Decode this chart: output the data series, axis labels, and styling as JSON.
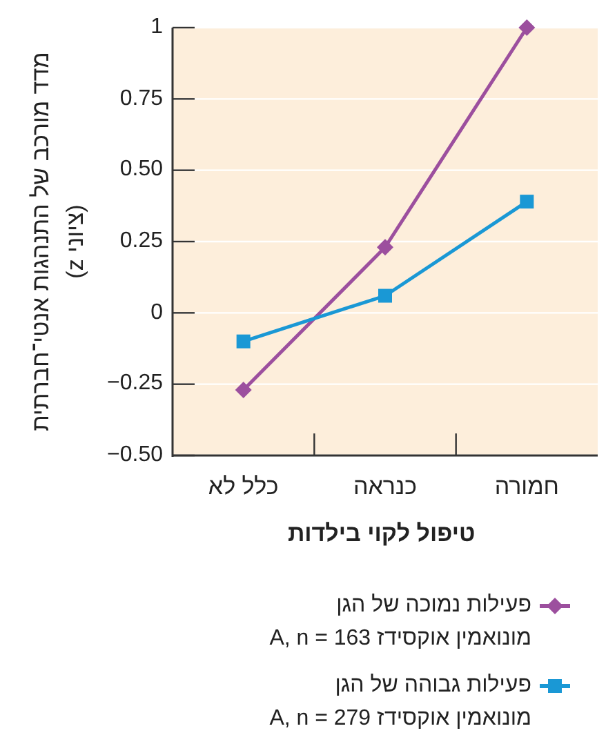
{
  "chart_data": {
    "type": "line",
    "xlabel": "טיפול לקוי בילדות",
    "ylabel": "מדד מורכב של התנהגות אנטי־חברתית (ציוני z)",
    "categories": [
      "כלל לא",
      "כנראה",
      "חמורה"
    ],
    "series": [
      {
        "name": "פעילות נמוכה של הגן מונואמין אוקסידז A, n = 163",
        "color": "#9c4f9e",
        "marker": "diamond",
        "values": [
          -0.27,
          0.23,
          1.0
        ]
      },
      {
        "name": "פעילות גבוהה של הגן מונואמין אוקסידז A, n = 279",
        "color": "#1a98d5",
        "marker": "square",
        "values": [
          -0.1,
          0.06,
          0.39
        ]
      }
    ],
    "ylim": [
      -0.5,
      1
    ],
    "yticks": [
      {
        "value": -0.5,
        "label": "−0.50"
      },
      {
        "value": -0.25,
        "label": "−0.25"
      },
      0,
      0.25,
      {
        "value": 0.5,
        "label": "0.50"
      },
      0.75,
      1
    ],
    "grid": "y",
    "legend": "bottom",
    "line_style": "solid"
  }
}
